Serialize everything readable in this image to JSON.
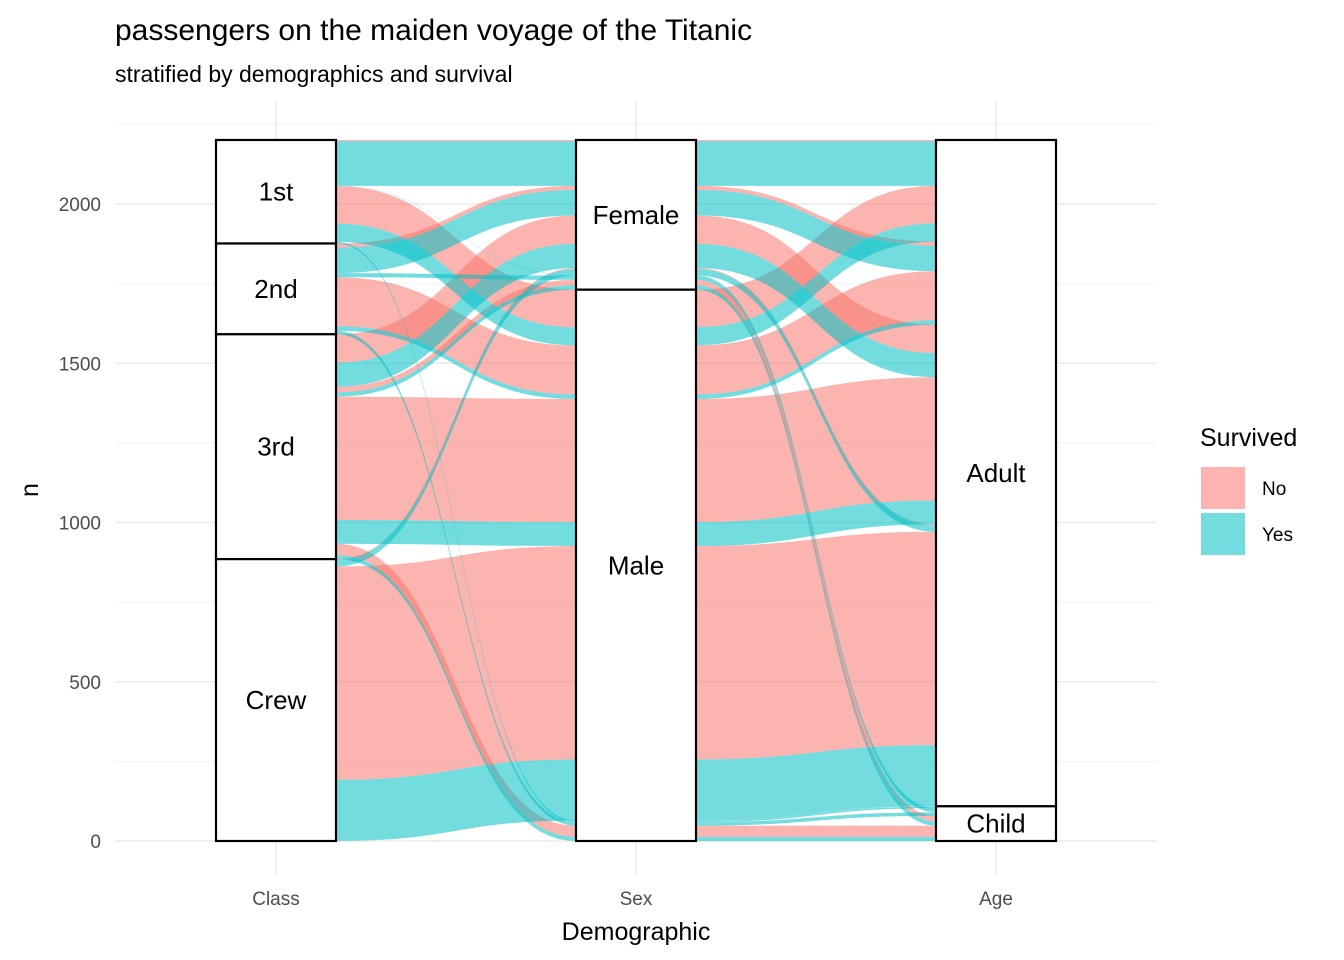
{
  "chart_data": {
    "type": "alluvial",
    "title": "passengers on the maiden voyage of the Titanic",
    "subtitle": "stratified by demographics and survival",
    "xlabel": "Demographic",
    "ylabel": "n",
    "ylim": [
      0,
      2201
    ],
    "y_ticks": [
      0,
      500,
      1000,
      1500,
      2000
    ],
    "axes": [
      "Class",
      "Sex",
      "Age"
    ],
    "strata": {
      "Class": [
        "1st",
        "2nd",
        "3rd",
        "Crew"
      ],
      "Sex": [
        "Female",
        "Male"
      ],
      "Age": [
        "Adult",
        "Child"
      ]
    },
    "legend": {
      "title": "Survived",
      "position": "right",
      "entries": [
        "No",
        "Yes"
      ]
    },
    "colors": {
      "No": "#F8766D",
      "Yes": "#00BFC4"
    },
    "grid": true,
    "flows": [
      {
        "Class": "1st",
        "Sex": "Male",
        "Age": "Child",
        "Survived": "No",
        "n": 0
      },
      {
        "Class": "2nd",
        "Sex": "Male",
        "Age": "Child",
        "Survived": "No",
        "n": 0
      },
      {
        "Class": "3rd",
        "Sex": "Male",
        "Age": "Child",
        "Survived": "No",
        "n": 35
      },
      {
        "Class": "Crew",
        "Sex": "Male",
        "Age": "Child",
        "Survived": "No",
        "n": 0
      },
      {
        "Class": "1st",
        "Sex": "Female",
        "Age": "Child",
        "Survived": "No",
        "n": 0
      },
      {
        "Class": "2nd",
        "Sex": "Female",
        "Age": "Child",
        "Survived": "No",
        "n": 0
      },
      {
        "Class": "3rd",
        "Sex": "Female",
        "Age": "Child",
        "Survived": "No",
        "n": 17
      },
      {
        "Class": "Crew",
        "Sex": "Female",
        "Age": "Child",
        "Survived": "No",
        "n": 0
      },
      {
        "Class": "1st",
        "Sex": "Male",
        "Age": "Adult",
        "Survived": "No",
        "n": 118
      },
      {
        "Class": "2nd",
        "Sex": "Male",
        "Age": "Adult",
        "Survived": "No",
        "n": 154
      },
      {
        "Class": "3rd",
        "Sex": "Male",
        "Age": "Adult",
        "Survived": "No",
        "n": 387
      },
      {
        "Class": "Crew",
        "Sex": "Male",
        "Age": "Adult",
        "Survived": "No",
        "n": 670
      },
      {
        "Class": "1st",
        "Sex": "Female",
        "Age": "Adult",
        "Survived": "No",
        "n": 4
      },
      {
        "Class": "2nd",
        "Sex": "Female",
        "Age": "Adult",
        "Survived": "No",
        "n": 13
      },
      {
        "Class": "3rd",
        "Sex": "Female",
        "Age": "Adult",
        "Survived": "No",
        "n": 89
      },
      {
        "Class": "Crew",
        "Sex": "Female",
        "Age": "Adult",
        "Survived": "No",
        "n": 3
      },
      {
        "Class": "1st",
        "Sex": "Male",
        "Age": "Child",
        "Survived": "Yes",
        "n": 5
      },
      {
        "Class": "2nd",
        "Sex": "Male",
        "Age": "Child",
        "Survived": "Yes",
        "n": 11
      },
      {
        "Class": "3rd",
        "Sex": "Male",
        "Age": "Child",
        "Survived": "Yes",
        "n": 13
      },
      {
        "Class": "Crew",
        "Sex": "Male",
        "Age": "Child",
        "Survived": "Yes",
        "n": 0
      },
      {
        "Class": "1st",
        "Sex": "Female",
        "Age": "Child",
        "Survived": "Yes",
        "n": 1
      },
      {
        "Class": "2nd",
        "Sex": "Female",
        "Age": "Child",
        "Survived": "Yes",
        "n": 13
      },
      {
        "Class": "3rd",
        "Sex": "Female",
        "Age": "Child",
        "Survived": "Yes",
        "n": 14
      },
      {
        "Class": "Crew",
        "Sex": "Female",
        "Age": "Child",
        "Survived": "Yes",
        "n": 0
      },
      {
        "Class": "1st",
        "Sex": "Male",
        "Age": "Adult",
        "Survived": "Yes",
        "n": 57
      },
      {
        "Class": "2nd",
        "Sex": "Male",
        "Age": "Adult",
        "Survived": "Yes",
        "n": 14
      },
      {
        "Class": "3rd",
        "Sex": "Male",
        "Age": "Adult",
        "Survived": "Yes",
        "n": 75
      },
      {
        "Class": "Crew",
        "Sex": "Male",
        "Age": "Adult",
        "Survived": "Yes",
        "n": 192
      },
      {
        "Class": "1st",
        "Sex": "Female",
        "Age": "Adult",
        "Survived": "Yes",
        "n": 140
      },
      {
        "Class": "2nd",
        "Sex": "Female",
        "Age": "Adult",
        "Survived": "Yes",
        "n": 80
      },
      {
        "Class": "3rd",
        "Sex": "Female",
        "Age": "Adult",
        "Survived": "Yes",
        "n": 76
      },
      {
        "Class": "Crew",
        "Sex": "Female",
        "Age": "Adult",
        "Survived": "Yes",
        "n": 20
      }
    ]
  }
}
